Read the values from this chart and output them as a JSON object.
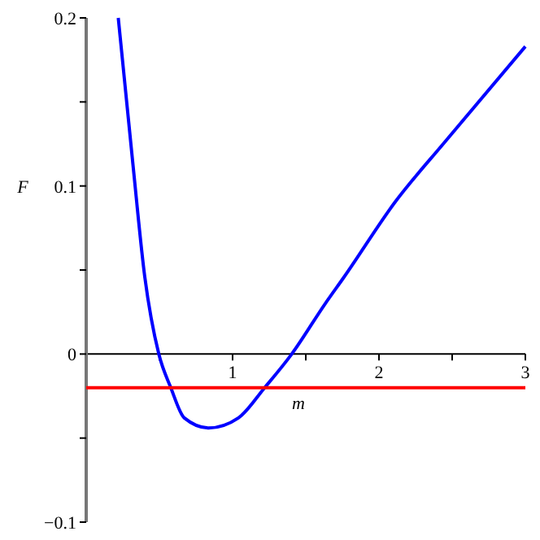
{
  "chart_data": {
    "type": "line",
    "xlabel": "m",
    "ylabel": "F",
    "xlim": [
      0,
      3
    ],
    "ylim": [
      -0.1,
      0.2
    ],
    "xticks": [
      {
        "value": 0.5,
        "label": null
      },
      1,
      {
        "value": 1.5,
        "label": null
      },
      2,
      {
        "value": 2.5,
        "label": null
      },
      3
    ],
    "yticks": [
      -0.1,
      {
        "value": -0.05,
        "label": null
      },
      0,
      {
        "value": 0.05,
        "label": null
      },
      0.1,
      {
        "value": 0.15,
        "label": null
      },
      0.2
    ],
    "series": [
      {
        "color": "#0000ff",
        "x": [
          0.219,
          0.319,
          0.4,
          0.496,
          0.578,
          0.67,
          0.837,
          1.04,
          1.219,
          1.404,
          1.633,
          1.763,
          2.115,
          2.448,
          3.0
        ],
        "values": [
          0.2,
          0.113,
          0.046,
          0,
          -0.02,
          -0.038,
          -0.044,
          -0.038,
          -0.02,
          0,
          0.03,
          0.046,
          0.091,
          0.126,
          0.183
        ]
      },
      {
        "color": "#ff0000",
        "x": [
          0,
          3
        ],
        "values": [
          -0.02,
          -0.02
        ]
      }
    ]
  }
}
